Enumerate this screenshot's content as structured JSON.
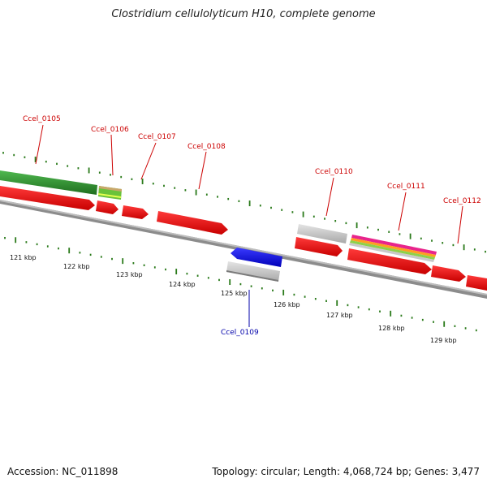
{
  "title": "Clostridium cellulolyticum H10, complete genome",
  "footer": {
    "accession": "Accession: NC_011898",
    "summary": "Topology: circular; Length: 4,068,724 bp; Genes: 3,477"
  },
  "colors": {
    "cds": "#ff0000",
    "gene_other": "#2e8b2e",
    "rna": "#c8c8c8",
    "reverse": "#0000ff",
    "label_forward": "#cc0000",
    "label_reverse": "#0000aa",
    "tick": "#2a7a1a",
    "backbone": "#888888"
  },
  "scale_labels": [
    "121 kbp",
    "122 kbp",
    "123 kbp",
    "124 kbp",
    "125 kbp",
    "126 kbp",
    "127 kbp",
    "128 kbp",
    "129 kbp"
  ],
  "genes": [
    {
      "label": "Ccel_0105",
      "strand": "forward"
    },
    {
      "label": "Ccel_0106",
      "strand": "forward"
    },
    {
      "label": "Ccel_0107",
      "strand": "forward"
    },
    {
      "label": "Ccel_0108",
      "strand": "forward"
    },
    {
      "label": "Ccel_0109",
      "strand": "reverse"
    },
    {
      "label": "Ccel_0110",
      "strand": "forward"
    },
    {
      "label": "Ccel_0111",
      "strand": "forward"
    },
    {
      "label": "Ccel_0112",
      "strand": "forward"
    }
  ]
}
